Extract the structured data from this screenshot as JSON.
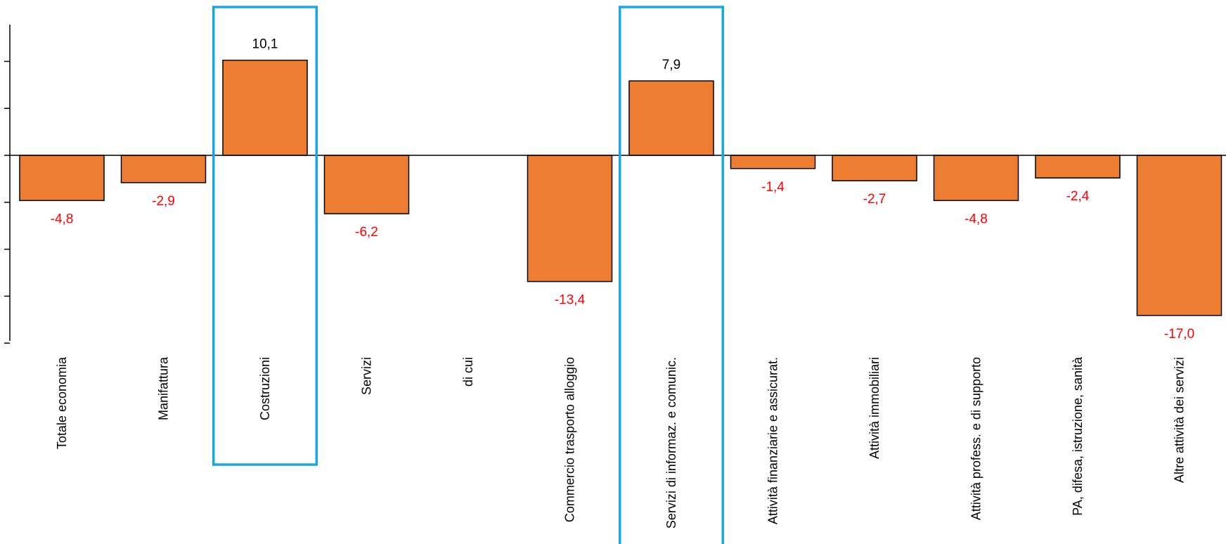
{
  "chart_data": {
    "type": "bar",
    "categories": [
      "Totale economia",
      "Manifattura",
      "Costruzioni",
      "Servizi",
      "di cui",
      "Commercio trasporto alloggio",
      "Servizi di informaz. e comunic.",
      "Attività finanziarie e assicurat.",
      "Attività immobiliari",
      "Attività profess. e di supporto",
      "PA, difesa, istruzione, sanità",
      "Altre attività  dei servizi"
    ],
    "values": [
      -4.8,
      -2.9,
      10.1,
      -6.2,
      null,
      -13.4,
      7.9,
      -1.4,
      -2.7,
      -4.8,
      -2.4,
      -17.0
    ],
    "value_labels": [
      "-4,8",
      "-2,9",
      "10,1",
      "-6,2",
      "",
      "-13,4",
      "7,9",
      "-1,4",
      "-2,7",
      "-4,8",
      "-2,4",
      "-17,0"
    ],
    "highlighted_categories": [
      "Costruzioni",
      "Servizi di informaz. e comunic."
    ],
    "ylim": [
      -20,
      15
    ],
    "title": "",
    "xlabel": "",
    "ylabel": "",
    "grid": false,
    "legend": "none",
    "colors": {
      "bar": "#ED7D31",
      "bar_outline": "#000000",
      "positive_label": "#000000",
      "negative_label": "#FF0000",
      "highlight": "#1AA7E0"
    }
  }
}
